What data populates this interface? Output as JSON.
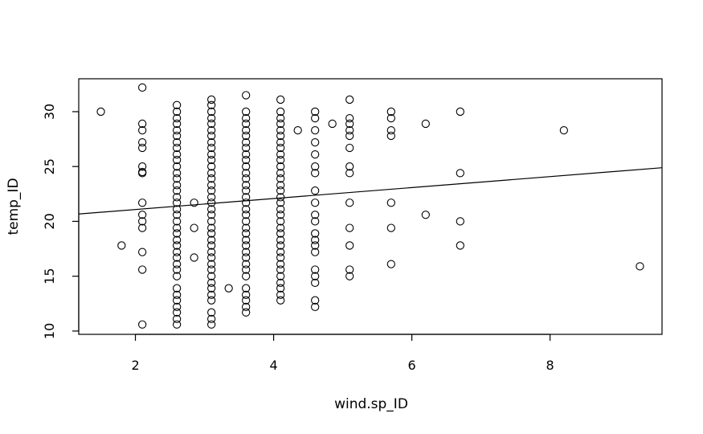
{
  "chart_data": {
    "type": "scatter",
    "title": "",
    "xlabel": "wind.sp_ID",
    "ylabel": "temp_ID",
    "xlim": [
      1.18,
      9.62
    ],
    "ylim": [
      9.7,
      33.0
    ],
    "xticks": [
      2,
      4,
      6,
      8
    ],
    "yticks": [
      10,
      15,
      20,
      25,
      30
    ],
    "grid": false,
    "legend": "none",
    "marker": "open-circle",
    "point_color": "#000000",
    "points_by_x": [
      {
        "x": 1.5,
        "y": [
          30.0
        ]
      },
      {
        "x": 1.8,
        "y": [
          17.8
        ]
      },
      {
        "x": 2.1,
        "y": [
          10.6,
          15.6,
          17.2,
          19.4,
          20.0,
          20.6,
          21.7,
          24.4,
          24.5,
          25.0,
          26.7,
          27.2,
          28.3,
          28.9,
          32.2
        ]
      },
      {
        "x": 2.6,
        "y": [
          10.6,
          11.1,
          11.7,
          12.2,
          12.8,
          13.3,
          13.9,
          15.0,
          15.6,
          16.1,
          16.7,
          17.2,
          17.8,
          18.3,
          18.9,
          19.4,
          20.0,
          20.6,
          21.1,
          21.7,
          22.2,
          22.8,
          23.3,
          23.9,
          24.4,
          25.0,
          25.6,
          26.1,
          26.7,
          27.2,
          27.8,
          28.3,
          28.9,
          29.4,
          30.0,
          30.6
        ]
      },
      {
        "x": 2.85,
        "y": [
          16.7,
          19.4,
          21.7
        ]
      },
      {
        "x": 3.1,
        "y": [
          10.6,
          11.1,
          11.7,
          12.8,
          13.3,
          13.9,
          14.4,
          15.0,
          15.6,
          16.1,
          16.7,
          17.2,
          17.8,
          18.3,
          18.9,
          19.4,
          20.0,
          20.6,
          21.1,
          21.7,
          22.2,
          22.8,
          23.3,
          23.9,
          24.4,
          25.0,
          25.6,
          26.1,
          26.7,
          27.2,
          27.8,
          28.3,
          28.9,
          29.4,
          30.0,
          30.6,
          31.1
        ]
      },
      {
        "x": 3.35,
        "y": [
          13.9
        ]
      },
      {
        "x": 3.6,
        "y": [
          11.7,
          12.2,
          12.8,
          13.3,
          13.9,
          15.0,
          15.6,
          16.1,
          16.7,
          17.2,
          17.8,
          18.3,
          18.9,
          19.4,
          20.0,
          20.6,
          21.1,
          21.7,
          22.2,
          22.8,
          23.3,
          23.9,
          24.4,
          25.0,
          25.6,
          26.1,
          26.7,
          27.2,
          27.8,
          28.3,
          28.9,
          29.4,
          30.0,
          31.5
        ]
      },
      {
        "x": 4.1,
        "y": [
          12.8,
          13.3,
          13.9,
          14.4,
          15.0,
          15.6,
          16.1,
          16.7,
          17.2,
          17.8,
          18.3,
          18.9,
          19.4,
          20.0,
          20.6,
          21.1,
          21.7,
          22.2,
          22.8,
          23.3,
          23.9,
          24.4,
          25.0,
          25.6,
          26.1,
          26.7,
          27.2,
          27.8,
          28.3,
          28.9,
          29.4,
          30.0,
          31.1
        ]
      },
      {
        "x": 4.35,
        "y": [
          28.3
        ]
      },
      {
        "x": 4.6,
        "y": [
          12.2,
          12.8,
          14.4,
          15.0,
          15.6,
          17.2,
          17.8,
          18.3,
          18.9,
          20.0,
          20.6,
          21.7,
          22.8,
          24.4,
          25.0,
          26.1,
          27.2,
          28.3,
          29.4,
          30.0
        ]
      },
      {
        "x": 4.85,
        "y": [
          28.9
        ]
      },
      {
        "x": 5.1,
        "y": [
          15.0,
          15.6,
          17.8,
          19.4,
          21.7,
          24.4,
          25.0,
          26.7,
          27.8,
          28.3,
          28.9,
          29.4,
          31.1
        ]
      },
      {
        "x": 5.7,
        "y": [
          16.1,
          19.4,
          21.7,
          27.8,
          28.3,
          29.4,
          30.0
        ]
      },
      {
        "x": 6.2,
        "y": [
          20.6,
          28.9
        ]
      },
      {
        "x": 6.7,
        "y": [
          17.8,
          20.0,
          24.4,
          30.0
        ]
      },
      {
        "x": 8.2,
        "y": [
          28.3
        ]
      },
      {
        "x": 9.3,
        "y": [
          15.9
        ]
      }
    ],
    "regression_line": {
      "intercept": 20.08,
      "slope": 0.5
    }
  }
}
